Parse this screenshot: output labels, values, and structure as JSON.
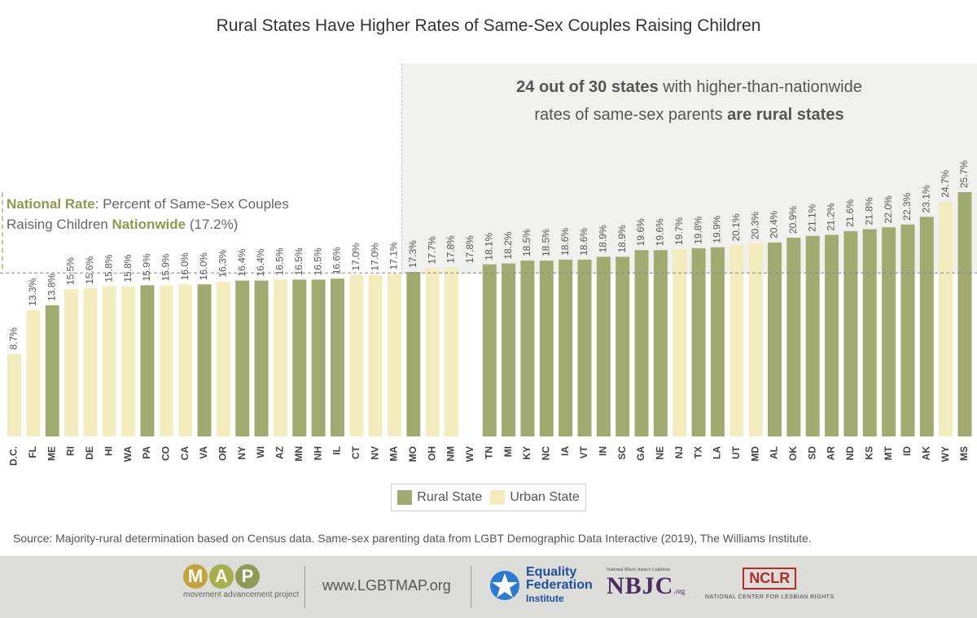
{
  "title": "Rural States Have Higher Rates of Same-Sex Couples Raising Children",
  "callout": {
    "line1_bold": "24 out of 30 states",
    "line1_rest": " with higher-than-nationwide",
    "line2_rest": "rates of same-sex parents ",
    "line2_bold": "are rural states"
  },
  "national_note": {
    "bold1": "National Rate",
    "text1": ": Percent of Same-Sex Couples",
    "text2": "Raising Children ",
    "bold2": "Nationwide",
    "text3": " (17.2%)"
  },
  "legend": {
    "rural": "Rural State",
    "urban": "Urban State"
  },
  "source": "Source: Majority-rural determination based on Census data. Same-sex parenting data from LGBT Demographic Data Interactive (2019), The Williams Institute.",
  "footer": {
    "map_letters": [
      "M",
      "A",
      "P"
    ],
    "map_sub": "movement advancement project",
    "url": "www.LGBTMAP.org",
    "eq_line1": "Equality",
    "eq_line2": "Federation",
    "eq_line3": "Institute",
    "nbjc_top": "National Black Justice Coalition",
    "nbjc_main": "NBJC",
    "nbjc_org": ".org",
    "nclr": "NCLR",
    "nclr_sub": "NATIONAL CENTER FOR LESBIAN RIGHTS"
  },
  "colors": {
    "rural": "#a1ab6f",
    "urban": "#f3ecbc",
    "map_m": "#c3a23c",
    "map_a": "#a8b04a",
    "map_p": "#8f9a55"
  },
  "chart_data": {
    "type": "bar",
    "title": "Rural States Have Higher Rates of Same-Sex Couples Raising Children",
    "xlabel": "",
    "ylabel": "",
    "ylim": [
      0,
      26
    ],
    "grid": false,
    "national_rate": 17.2,
    "series": [
      {
        "name": "Rural State"
      },
      {
        "name": "Urban State"
      }
    ],
    "categories": [
      "D.C.",
      "FL",
      "ME",
      "RI",
      "DE",
      "HI",
      "WA",
      "PA",
      "CO",
      "CA",
      "VA",
      "OR",
      "NY",
      "WI",
      "AZ",
      "MN",
      "NH",
      "IL",
      "CT",
      "NV",
      "MA",
      "MO",
      "OH",
      "NM",
      "WV",
      "TN",
      "MI",
      "KY",
      "NC",
      "IA",
      "VT",
      "IN",
      "SC",
      "GA",
      "NE",
      "NJ",
      "TX",
      "LA",
      "UT",
      "MD",
      "AL",
      "OK",
      "SD",
      "AR",
      "ND",
      "KS",
      "MT",
      "ID",
      "AK",
      "WY",
      "MS"
    ],
    "values": [
      8.7,
      13.3,
      13.8,
      15.5,
      15.6,
      15.8,
      15.8,
      15.9,
      15.9,
      16.0,
      16.0,
      16.3,
      16.4,
      16.4,
      16.5,
      16.5,
      16.5,
      16.6,
      17.0,
      17.0,
      17.1,
      17.3,
      17.7,
      17.8,
      17.8,
      18.1,
      18.2,
      18.5,
      18.5,
      18.6,
      18.6,
      18.9,
      18.9,
      19.6,
      19.6,
      19.7,
      19.8,
      19.9,
      20.1,
      20.3,
      20.4,
      20.9,
      21.1,
      21.2,
      21.6,
      21.8,
      22.0,
      22.3,
      23.1,
      24.7,
      25.7
    ],
    "labels": [
      "8.7%",
      "13.3%",
      "13.8%",
      "15.5%",
      "15.6%",
      "15.8%",
      "15.8%",
      "15.9%",
      "15.9%",
      "16.0%",
      "16.0%",
      "16.3%",
      "16.4%",
      "16.4%",
      "16.5%",
      "16.5%",
      "16.5%",
      "16.6%",
      "17.0%",
      "17.0%",
      "17.1%",
      "17.3%",
      "17.7%",
      "17.8%",
      "17.8%",
      "18.1%",
      "18.2%",
      "18.5%",
      "18.5%",
      "18.6%",
      "18.6%",
      "18.9%",
      "18.9%",
      "19.6%",
      "19.6%",
      "19.7%",
      "19.8%",
      "19.9%",
      "20.1%",
      "20.3%",
      "20.4%",
      "20.9%",
      "21.1%",
      "21.2%",
      "21.6%",
      "21.8%",
      "22.0%",
      "22.3%",
      "23.1%",
      "24.7%",
      "25.7%"
    ],
    "group": [
      "urban",
      "urban",
      "rural",
      "urban",
      "urban",
      "urban",
      "urban",
      "rural",
      "urban",
      "urban",
      "rural",
      "urban",
      "rural",
      "rural",
      "urban",
      "rural",
      "rural",
      "rural",
      "urban",
      "urban",
      "urban",
      "rural",
      "urban",
      "urban",
      "none",
      "rural",
      "rural",
      "rural",
      "rural",
      "rural",
      "rural",
      "rural",
      "rural",
      "rural",
      "rural",
      "urban",
      "rural",
      "rural",
      "urban",
      "urban",
      "rural",
      "rural",
      "rural",
      "rural",
      "rural",
      "rural",
      "rural",
      "rural",
      "rural",
      "urban",
      "rural"
    ]
  }
}
